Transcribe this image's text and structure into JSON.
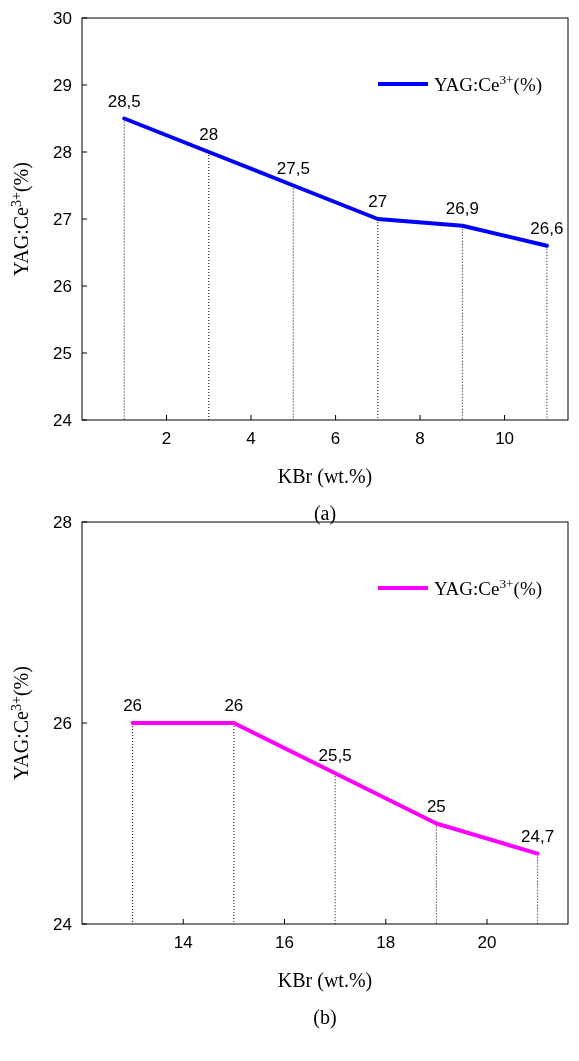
{
  "chart_data": [
    {
      "type": "line",
      "xlabel": "KBr (wt.%)",
      "ylabel": "YAG:Ce$^{3+}$(%)",
      "annotations": [
        "(a)"
      ],
      "x": [
        1,
        3,
        5,
        7,
        9,
        11
      ],
      "series": [
        {
          "name": "YAG:Ce$^{3+}$(%)",
          "color": "#0000ff",
          "values": [
            28.5,
            28,
            27.5,
            27,
            26.9,
            26.6
          ],
          "value_labels": [
            "28,5",
            "28",
            "27,5",
            "27",
            "26,9",
            "26,6"
          ]
        }
      ],
      "xlim": [
        0,
        11.5
      ],
      "xticks": [
        2,
        4,
        6,
        8,
        10
      ],
      "ylim": [
        24,
        30
      ],
      "yticks": [
        24,
        25,
        26,
        27,
        28,
        29,
        30
      ],
      "legend": "top right",
      "grid": false,
      "marker": "none",
      "line_style": "solid"
    },
    {
      "type": "line",
      "xlabel": "KBr (wt.%)",
      "ylabel": "YAG:Ce$^{3+}$(%)",
      "annotations": [
        "(b)"
      ],
      "x": [
        13,
        15,
        17,
        19,
        21
      ],
      "series": [
        {
          "name": "YAG:Ce$^{3+}$(%)",
          "color": "#ff00ff",
          "values": [
            26,
            26,
            25.5,
            25,
            24.7
          ],
          "value_labels": [
            "26",
            "26",
            "25,5",
            "25",
            "24,7"
          ]
        }
      ],
      "xlim": [
        12,
        21.6
      ],
      "xticks": [
        14,
        16,
        18,
        20
      ],
      "ylim": [
        24,
        28
      ],
      "yticks": [
        24,
        26,
        28
      ],
      "legend": "top right",
      "grid": false,
      "marker": "none",
      "line_style": "solid"
    }
  ]
}
